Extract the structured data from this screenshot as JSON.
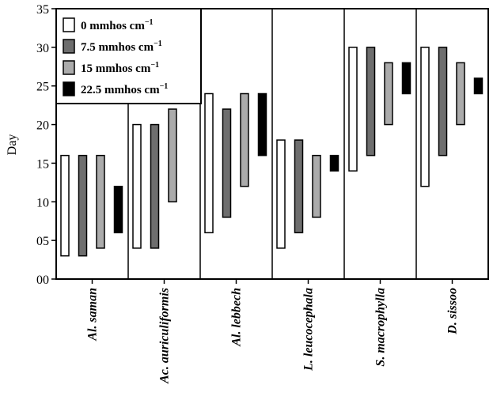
{
  "chart_data": {
    "type": "bar",
    "subtype": "floating-range",
    "ylabel": "Day",
    "ylim": [
      0,
      35
    ],
    "y_ticks": [
      "00",
      "05",
      "10",
      "15",
      "20",
      "25",
      "30",
      "35"
    ],
    "y_tick_values": [
      0,
      5,
      10,
      15,
      20,
      25,
      30,
      35
    ],
    "grid": false,
    "legend_position": "top-left",
    "categories": [
      "Al. saman",
      "Ac. auriculiformis",
      "Al. lebbech",
      "L. leucocephala",
      "S. macrophylla",
      "D. sissoo"
    ],
    "series": [
      {
        "name": "0 mmhos cm",
        "color": "#ffffff",
        "ranges": [
          [
            3,
            16
          ],
          [
            4,
            20
          ],
          [
            6,
            24
          ],
          [
            4,
            18
          ],
          [
            14,
            30
          ],
          [
            12,
            30
          ]
        ]
      },
      {
        "name": "7.5 mmhos cm",
        "color": "#6e6e6e",
        "ranges": [
          [
            3,
            16
          ],
          [
            4,
            20
          ],
          [
            8,
            22
          ],
          [
            6,
            18
          ],
          [
            16,
            30
          ],
          [
            16,
            30
          ]
        ]
      },
      {
        "name": "15 mmhos cm",
        "color": "#ababab",
        "ranges": [
          [
            4,
            16
          ],
          [
            10,
            22
          ],
          [
            12,
            24
          ],
          [
            8,
            16
          ],
          [
            20,
            28
          ],
          [
            20,
            28
          ]
        ]
      },
      {
        "name": "22.5 mmhos cm",
        "color": "#000000",
        "ranges": [
          [
            6,
            12
          ],
          null,
          [
            16,
            24
          ],
          [
            14,
            16
          ],
          [
            24,
            28
          ],
          [
            24,
            26
          ]
        ]
      }
    ]
  }
}
